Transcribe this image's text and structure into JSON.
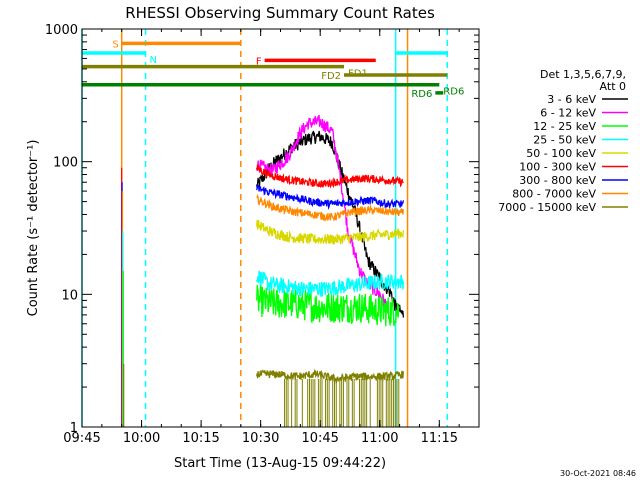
{
  "chart_data": {
    "type": "line",
    "title": "RHESSI Observing Summary Count Rates",
    "xlabel": "Start Time (13-Aug-15 09:44:22)",
    "ylabel": "Count Rate (s⁻¹ detector⁻¹)",
    "xlim": [
      "09:45",
      "11:25"
    ],
    "ylim": [
      1,
      1000
    ],
    "y_scale": "log",
    "x_ticks": [
      "09:45",
      "10:00",
      "10:15",
      "10:30",
      "10:45",
      "11:00",
      "11:15"
    ],
    "y_ticks": [
      "1",
      "10",
      "100",
      "1000"
    ],
    "legend_title": [
      "Det 1,3,5,6,7,9,",
      "Att 0"
    ],
    "legend_position": "right",
    "grid": false,
    "footer_timestamp": "30-Oct-2021 08:46",
    "series": [
      {
        "name": "3 - 6 keV",
        "color": "#000000",
        "x": [
          "10:29",
          "10:33",
          "10:38",
          "10:42",
          "10:45",
          "10:48",
          "10:50",
          "10:54",
          "10:57",
          "11:01",
          "11:03",
          "11:04",
          "11:06"
        ],
        "y": [
          65,
          95,
          130,
          150,
          155,
          140,
          90,
          40,
          18,
          12,
          10,
          8,
          7
        ]
      },
      {
        "name": "6 - 12 keV",
        "color": "#ff00ff",
        "x": [
          "10:29",
          "10:33",
          "10:37",
          "10:40",
          "10:42",
          "10:45",
          "10:48",
          "10:50",
          "10:52",
          "10:55",
          "10:57",
          "11:00",
          "11:02"
        ],
        "y": [
          95,
          85,
          110,
          165,
          195,
          200,
          170,
          80,
          30,
          15,
          12,
          10,
          8
        ]
      },
      {
        "name": "12 - 25 keV",
        "color": "#00ff00",
        "x": [
          "10:29",
          "10:33",
          "10:38",
          "10:45",
          "10:50",
          "10:55",
          "11:00",
          "11:05"
        ],
        "y": [
          9,
          8.5,
          8.5,
          8,
          8,
          8,
          7.5,
          7.5
        ]
      },
      {
        "name": "25 - 50 keV",
        "color": "#00ffff",
        "x": [
          "10:29",
          "10:32",
          "10:36",
          "10:41",
          "10:46",
          "10:51",
          "10:56",
          "11:01",
          "11:06"
        ],
        "y": [
          14,
          12,
          11.5,
          11,
          11,
          11.5,
          12,
          12.5,
          12.5
        ]
      },
      {
        "name": "50 - 100 keV",
        "color": "#d8d800",
        "x": [
          "10:29",
          "10:32",
          "10:37",
          "10:43",
          "10:49",
          "10:55",
          "11:00",
          "11:06"
        ],
        "y": [
          34,
          30,
          27,
          26,
          26,
          27,
          28,
          29
        ]
      },
      {
        "name": "100 - 300 keV",
        "color": "#ff0000",
        "x": [
          "10:29",
          "10:32",
          "10:36",
          "10:41",
          "10:46",
          "10:51",
          "10:56",
          "11:01",
          "11:06"
        ],
        "y": [
          90,
          80,
          74,
          70,
          68,
          72,
          75,
          73,
          70
        ]
      },
      {
        "name": "300 - 800 keV",
        "color": "#0000ff",
        "x": [
          "10:29",
          "10:33",
          "10:38",
          "10:43",
          "10:48",
          "10:53",
          "10:58",
          "11:02",
          "11:06"
        ],
        "y": [
          63,
          58,
          54,
          50,
          48,
          50,
          51,
          48,
          48
        ]
      },
      {
        "name": "800 - 7000 keV",
        "color": "#ff8800",
        "x": [
          "10:29",
          "10:33",
          "10:38",
          "10:43",
          "10:48",
          "10:53",
          "10:58",
          "11:02",
          "11:06"
        ],
        "y": [
          52,
          46,
          42,
          40,
          38,
          42,
          43,
          42,
          41
        ]
      },
      {
        "name": "7000 - 15000 keV",
        "color": "#808000",
        "x": [
          "10:29",
          "10:34",
          "10:39",
          "10:44",
          "10:49",
          "10:54",
          "10:59",
          "11:03",
          "11:06"
        ],
        "y": [
          2.5,
          2.5,
          2.4,
          2.5,
          2.3,
          2.4,
          2.4,
          2.4,
          2.5
        ],
        "y_min": 1
      }
    ],
    "initial_spike": {
      "x": "09:55",
      "y_max": 90
    },
    "vertical_lines": [
      {
        "x": "09:45",
        "color": "#00ffff",
        "style": "solid"
      },
      {
        "x": "09:55",
        "color": "#ff8800",
        "style": "solid"
      },
      {
        "x": "10:01",
        "color": "#00ffff",
        "style": "dashed"
      },
      {
        "x": "10:25",
        "color": "#ff8800",
        "style": "dashed"
      },
      {
        "x": "11:04",
        "color": "#00ffff",
        "style": "solid"
      },
      {
        "x": "11:07",
        "color": "#ff8800",
        "style": "solid"
      },
      {
        "x": "11:17",
        "color": "#00ffff",
        "style": "dashed"
      }
    ],
    "flag_bars": [
      {
        "label": "S",
        "color": "#ff8800",
        "x_start": "09:55",
        "x_end": "10:25",
        "y": 780,
        "label_pos": "left"
      },
      {
        "label": "N",
        "color": "#00ffff",
        "x_start": "09:45",
        "x_end": "10:01",
        "y": 660,
        "label_pos": "right"
      },
      {
        "label": "N",
        "color": "#00ffff",
        "x_start": "11:04",
        "x_end": "11:17",
        "y": 660,
        "label_pos": "none"
      },
      {
        "label": "F",
        "color": "#ff0000",
        "x_start": "10:31",
        "x_end": "10:59",
        "y": 580,
        "label_pos": "left"
      },
      {
        "label": "FD1",
        "color": "#808000",
        "x_start": "09:45",
        "x_end": "10:51",
        "y": 520,
        "label_pos": "right"
      },
      {
        "label": "FD2",
        "color": "#808000",
        "x_start": "10:51",
        "x_end": "11:17",
        "y": 450,
        "label_pos": "left"
      },
      {
        "label": "RD6",
        "color": "#008000",
        "x_start": "09:45",
        "x_end": "11:15",
        "y": 380,
        "label_pos": "right"
      },
      {
        "label": "RD6",
        "color": "#008000",
        "x_start": "11:14",
        "x_end": "11:16",
        "y": 330,
        "label_pos": "left"
      }
    ]
  }
}
